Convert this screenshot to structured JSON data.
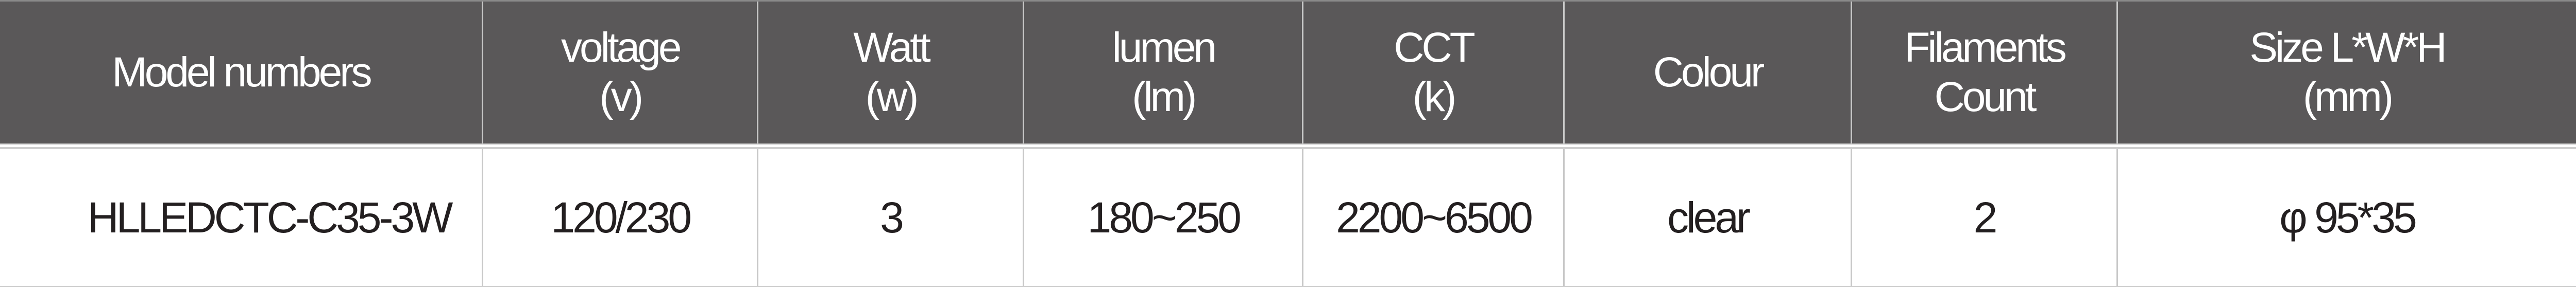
{
  "table": {
    "header_bg": "#5a5859",
    "headers": [
      "Model numbers",
      "voltage\n(v)",
      "Watt\n(w)",
      "lumen\n(lm)",
      "CCT\n(k)",
      "Colour",
      "Filaments\nCount",
      "Size L*W*H\n(mm)"
    ],
    "rows": [
      [
        "HLLEDCTC-C35-3W",
        "120/230",
        "3",
        "180~250",
        "2200~6500",
        "clear",
        "2",
        "φ 95*35"
      ]
    ]
  }
}
